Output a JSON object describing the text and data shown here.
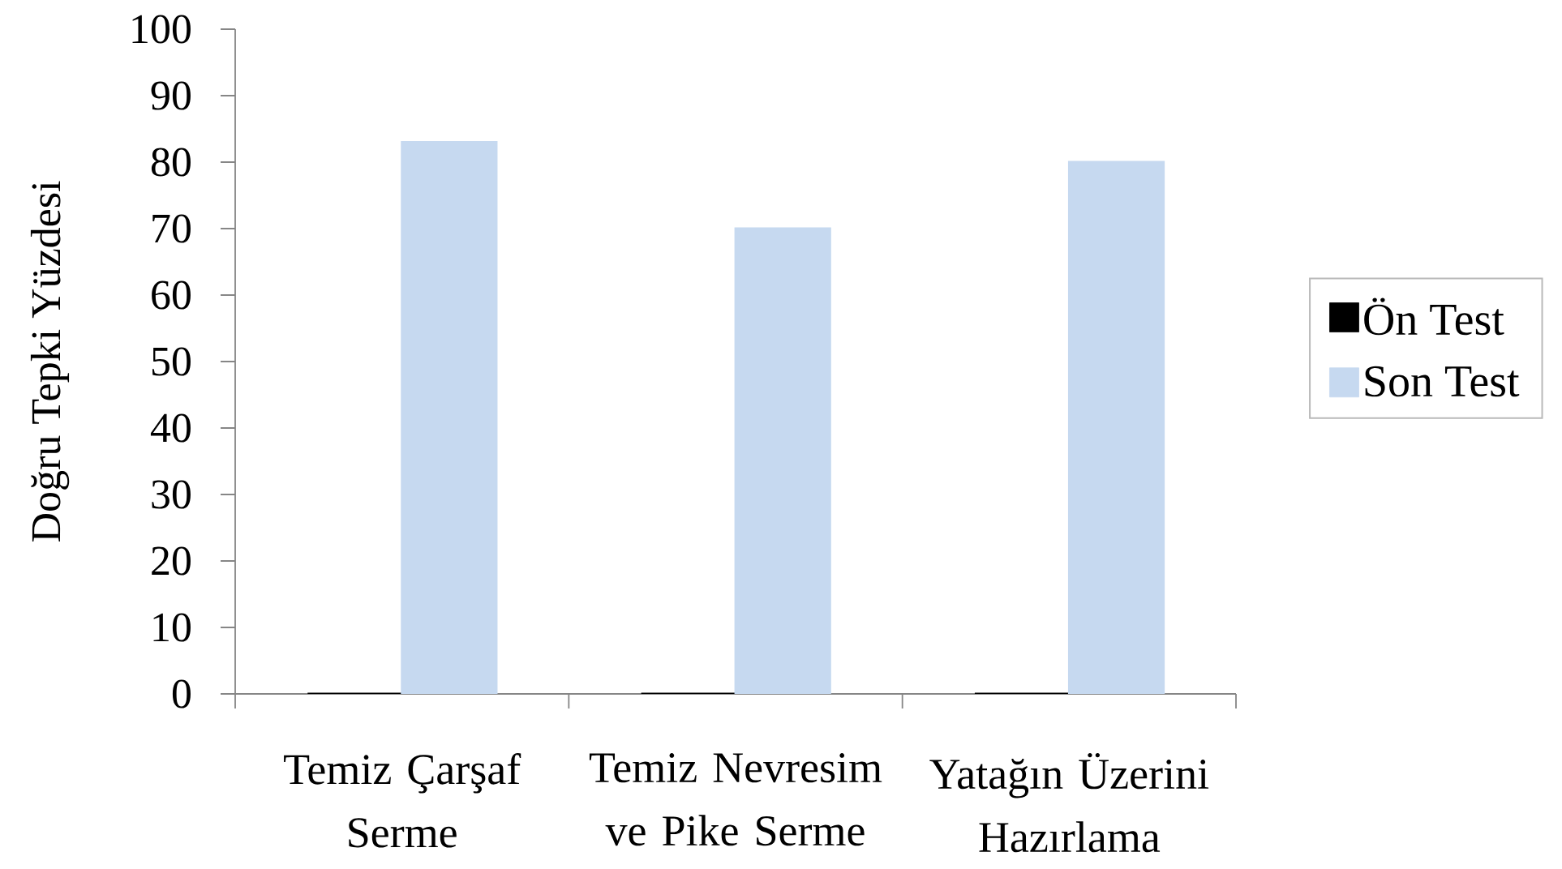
{
  "chart_data": {
    "type": "bar",
    "ylabel": "Doğru Tepki Yüzdesi",
    "categories": [
      "Temiz Çarşaf Serme",
      "Temiz Nevresim ve Pike Serme",
      "Yatağın Üzerini Hazırlama"
    ],
    "series": [
      {
        "name": "Ön Test",
        "color": "#000000",
        "values": [
          0,
          0,
          0
        ]
      },
      {
        "name": "Son Test",
        "color": "#c6d9f0",
        "values": [
          83,
          70,
          80
        ]
      }
    ],
    "ylim": [
      0,
      100
    ],
    "yticks": [
      0,
      10,
      20,
      30,
      40,
      50,
      60,
      70,
      80,
      90,
      100
    ],
    "grid": false,
    "legend": "right"
  }
}
